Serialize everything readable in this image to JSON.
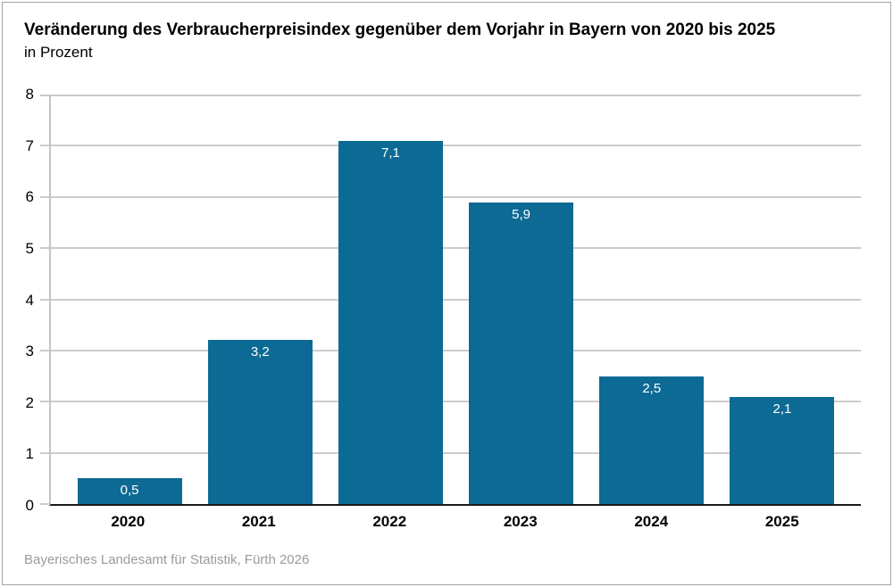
{
  "chart_data": {
    "type": "bar",
    "title": "Veränderung des Verbraucherpreisindex gegenüber dem Vorjahr in Bayern von 2020 bis 2025",
    "subtitle": "in Prozent",
    "categories": [
      "2020",
      "2021",
      "2022",
      "2023",
      "2024",
      "2025"
    ],
    "values": [
      0.5,
      3.2,
      7.1,
      5.9,
      2.5,
      2.1
    ],
    "value_labels": [
      "0,5",
      "3,2",
      "7,1",
      "5,9",
      "2,5",
      "2,1"
    ],
    "xlabel": "",
    "ylabel": "in Prozent",
    "ylim": [
      0,
      8
    ],
    "yticks": [
      0,
      1,
      2,
      3,
      4,
      5,
      6,
      7,
      8
    ],
    "grid": true,
    "legend": false
  },
  "footer": {
    "source": "Bayerisches Landesamt für Statistik, Fürth 2026"
  },
  "colors": {
    "bar": "#0d6a94",
    "gridline": "#cccccc",
    "axis_line": "#c4c4c4",
    "baseline": "#1a1a1a",
    "value_label_text": "#ffffff",
    "axis_text": "#000000",
    "source_text": "#9b9b9b",
    "frame_border": "#a6a6a6"
  }
}
